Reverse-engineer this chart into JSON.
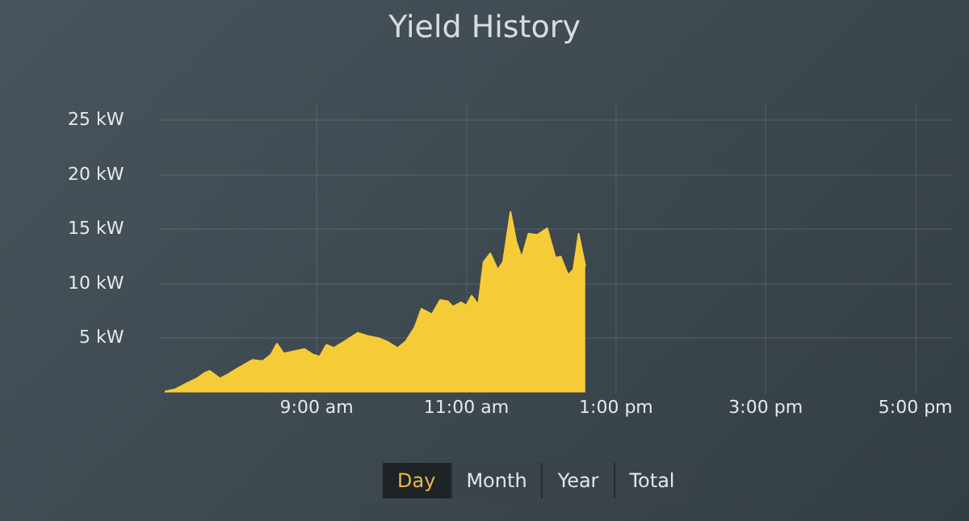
{
  "chart_data": {
    "type": "area",
    "title": "Yield History",
    "x": [
      6.97,
      7.11,
      7.25,
      7.4,
      7.5,
      7.57,
      7.71,
      7.82,
      7.96,
      8.14,
      8.28,
      8.39,
      8.47,
      8.56,
      8.7,
      8.84,
      8.95,
      9.04,
      9.13,
      9.23,
      9.37,
      9.55,
      9.69,
      9.83,
      9.94,
      10.08,
      10.19,
      10.31,
      10.4,
      10.54,
      10.65,
      10.75,
      10.82,
      10.93,
      11.0,
      11.07,
      11.16,
      11.23,
      11.32,
      11.42,
      11.49,
      11.59,
      11.67,
      11.74,
      11.83,
      11.95,
      12.08,
      12.19,
      12.26,
      12.36,
      12.43,
      12.5,
      12.59
    ],
    "series": [
      {
        "color": "#f5cc38",
        "values": [
          0.1,
          0.3,
          0.8,
          1.3,
          1.8,
          2.0,
          1.3,
          1.7,
          2.3,
          3.0,
          2.9,
          3.5,
          4.5,
          3.6,
          3.8,
          4.0,
          3.5,
          3.3,
          4.4,
          4.1,
          4.7,
          5.5,
          5.2,
          5.0,
          4.7,
          4.1,
          4.7,
          6.0,
          7.7,
          7.2,
          8.5,
          8.4,
          7.9,
          8.3,
          8.0,
          8.9,
          8.1,
          12.0,
          12.8,
          11.3,
          12.0,
          16.6,
          13.8,
          12.4,
          14.6,
          14.5,
          15.1,
          12.4,
          12.5,
          10.8,
          11.3,
          14.6,
          11.6
        ]
      }
    ],
    "xlim": [
      6.9,
      17.5
    ],
    "xticks": [
      {
        "value": 9,
        "label": "9:00 am"
      },
      {
        "value": 11,
        "label": "11:00 am"
      },
      {
        "value": 13,
        "label": "1:00 pm"
      },
      {
        "value": 15,
        "label": "3:00 pm"
      },
      {
        "value": 17,
        "label": "5:00 pm"
      }
    ],
    "ylim": [
      0,
      26.5
    ],
    "yticks": [
      {
        "value": 5,
        "label": "5 kW"
      },
      {
        "value": 10,
        "label": "10 kW"
      },
      {
        "value": 15,
        "label": "15 kW"
      },
      {
        "value": 20,
        "label": "20 kW"
      },
      {
        "value": 25,
        "label": "25 kW"
      }
    ],
    "grid": true,
    "legend": false,
    "marker": "none",
    "annotations": [
      "Day",
      "Month",
      "Year",
      "Total"
    ]
  }
}
